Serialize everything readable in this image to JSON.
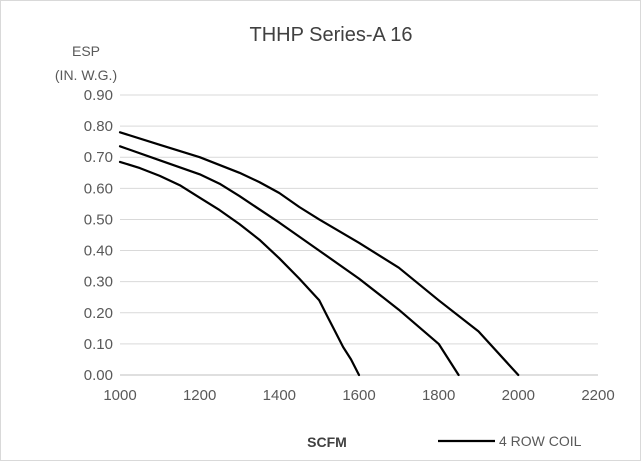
{
  "chart_data": {
    "type": "line",
    "title": "THHP Series-A 16",
    "ylabel_line1": "ESP",
    "ylabel_line2": "(IN. W.G.)",
    "xlabel": "SCFM",
    "xlim": [
      1000,
      2200
    ],
    "ylim": [
      0,
      0.9
    ],
    "x_ticks": [
      "1000",
      "1200",
      "1400",
      "1600",
      "1800",
      "2000",
      "2200"
    ],
    "y_ticks": [
      "0.00",
      "0.10",
      "0.20",
      "0.30",
      "0.40",
      "0.50",
      "0.60",
      "0.70",
      "0.80",
      "0.90"
    ],
    "grid": "horizontal",
    "legend": {
      "position": "bottom-right",
      "entries": [
        "4 ROW COIL"
      ]
    },
    "line_color": "#000000",
    "series": [
      {
        "x": [
          1000,
          1050,
          1100,
          1150,
          1200,
          1250,
          1300,
          1350,
          1400,
          1450,
          1500,
          1520,
          1540,
          1560,
          1580,
          1600
        ],
        "y": [
          0.685,
          0.665,
          0.64,
          0.61,
          0.57,
          0.53,
          0.485,
          0.435,
          0.375,
          0.31,
          0.24,
          0.19,
          0.14,
          0.09,
          0.05,
          0.0
        ]
      },
      {
        "x": [
          1000,
          1100,
          1200,
          1250,
          1300,
          1400,
          1500,
          1600,
          1700,
          1800,
          1850
        ],
        "y": [
          0.735,
          0.69,
          0.645,
          0.615,
          0.575,
          0.49,
          0.4,
          0.31,
          0.21,
          0.1,
          0.0
        ]
      },
      {
        "x": [
          1000,
          1100,
          1200,
          1300,
          1350,
          1400,
          1450,
          1500,
          1600,
          1700,
          1800,
          1900,
          2000
        ],
        "y": [
          0.78,
          0.74,
          0.7,
          0.65,
          0.62,
          0.585,
          0.54,
          0.5,
          0.425,
          0.345,
          0.24,
          0.14,
          0.0
        ]
      }
    ]
  }
}
